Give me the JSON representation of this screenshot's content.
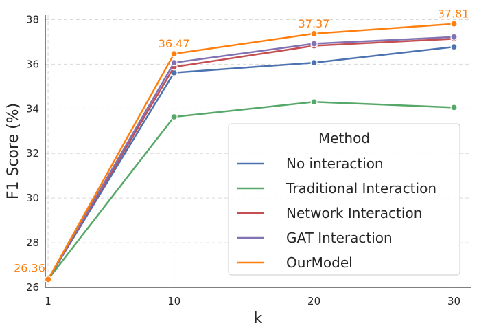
{
  "chart_data": {
    "type": "line",
    "title": "",
    "xlabel": "k",
    "ylabel": "F1 Score (%)",
    "x": [
      1,
      10,
      20,
      30
    ],
    "xticks": [
      "1",
      "10",
      "20",
      "30"
    ],
    "yticks": [
      "26",
      "28",
      "30",
      "32",
      "34",
      "36",
      "38"
    ],
    "xlim": [
      0.8,
      31.2
    ],
    "ylim": [
      26.0,
      38.2
    ],
    "grid": true,
    "legend_title": "Method",
    "legend_position": "center-right",
    "series": [
      {
        "name": "No interaction",
        "color": "#4c72b0",
        "values": [
          26.36,
          35.62,
          36.07,
          36.78
        ]
      },
      {
        "name": "Traditional Interaction",
        "color": "#55a868",
        "values": [
          26.36,
          33.64,
          34.31,
          34.06
        ]
      },
      {
        "name": "Network Interaction",
        "color": "#c44e52",
        "values": [
          26.36,
          35.88,
          36.83,
          37.14
        ]
      },
      {
        "name": "GAT Interaction",
        "color": "#8172b3",
        "values": [
          26.36,
          36.07,
          36.92,
          37.22
        ]
      },
      {
        "name": "OurModel",
        "color": "#ff7f0e",
        "values": [
          26.36,
          36.47,
          37.37,
          37.81
        ]
      }
    ],
    "annotations": [
      {
        "series": "OurModel",
        "x": 1,
        "text": "26.36"
      },
      {
        "series": "OurModel",
        "x": 10,
        "text": "36.47"
      },
      {
        "series": "OurModel",
        "x": 20,
        "text": "37.37"
      },
      {
        "series": "OurModel",
        "x": 30,
        "text": "37.81"
      }
    ]
  }
}
